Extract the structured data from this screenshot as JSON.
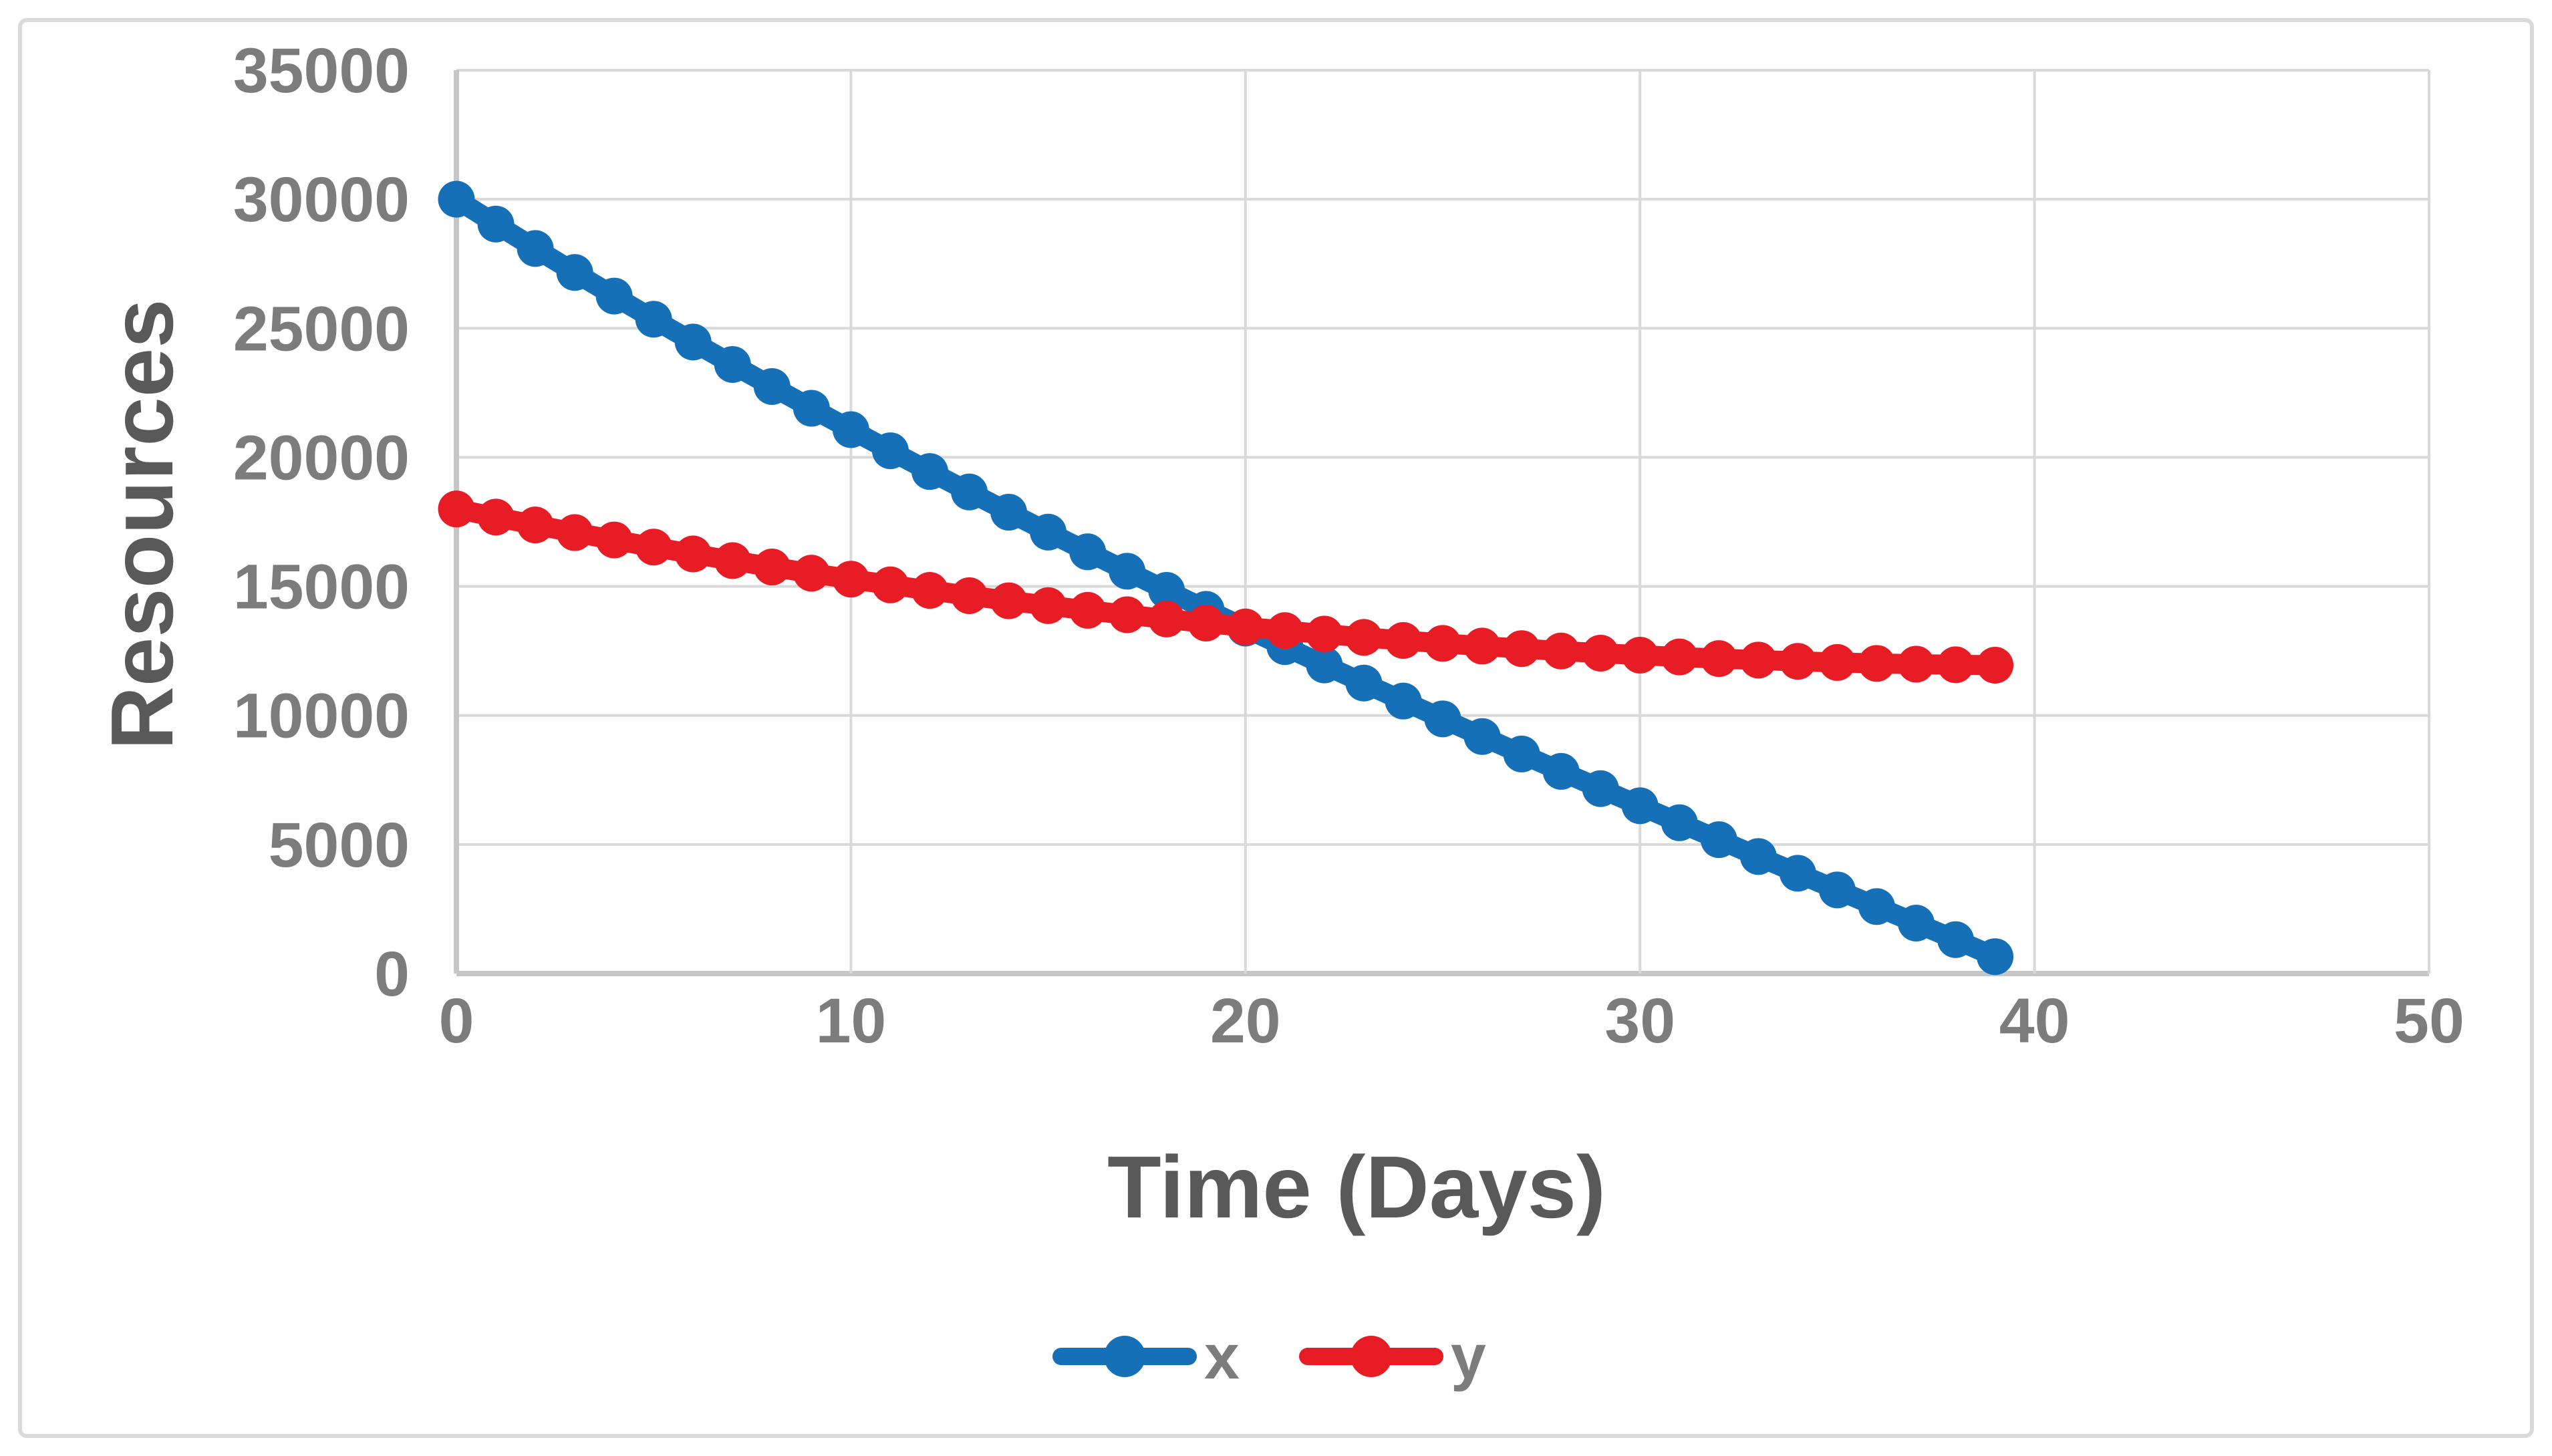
{
  "chart_data": {
    "type": "line",
    "title": "",
    "xlabel": "Time (Days)",
    "ylabel": "Resources",
    "x": [
      0,
      1,
      2,
      3,
      4,
      5,
      6,
      7,
      8,
      9,
      10,
      11,
      12,
      13,
      14,
      15,
      16,
      17,
      18,
      19,
      20,
      21,
      22,
      23,
      24,
      25,
      26,
      27,
      28,
      29,
      30,
      31,
      32,
      33,
      34,
      35,
      36,
      37,
      38,
      39
    ],
    "series": [
      {
        "name": "x",
        "color": "#1670B8",
        "values": [
          30000,
          29037,
          28091,
          27162,
          26248,
          25350,
          24467,
          23598,
          22743,
          21901,
          21072,
          20255,
          19450,
          18657,
          17874,
          17102,
          16340,
          15588,
          14845,
          14111,
          13385,
          12667,
          11957,
          11254,
          10558,
          9868,
          9184,
          8506,
          7833,
          7165,
          6502,
          5843,
          5187,
          4535,
          3886,
          3240,
          2596,
          1954,
          1313,
          655
        ]
      },
      {
        "name": "y",
        "color": "#E81C24",
        "values": [
          18000,
          17685,
          17380,
          17085,
          16799,
          16523,
          16257,
          15999,
          15751,
          15512,
          15281,
          15059,
          14845,
          14640,
          14443,
          14254,
          14074,
          13901,
          13736,
          13579,
          13429,
          13287,
          13152,
          13025,
          12905,
          12793,
          12687,
          12589,
          12498,
          12414,
          12336,
          12266,
          12202,
          12146,
          12096,
          12053,
          12016,
          11987,
          11964,
          11947
        ]
      }
    ],
    "xlim": [
      0,
      50
    ],
    "ylim": [
      0,
      35000
    ],
    "x_ticks": [
      0,
      10,
      20,
      30,
      40,
      50
    ],
    "y_ticks": [
      0,
      5000,
      10000,
      15000,
      20000,
      25000,
      30000,
      35000
    ],
    "grid": true,
    "legend_position": "bottom",
    "marker": "circle",
    "colors": {
      "gridline": "#D9D9D9",
      "axis_line": "#C4C6C8",
      "tick_text": "#7C7C7C",
      "title_text": "#595959",
      "frame_border": "#D9DADB",
      "background": "#FFFFFF"
    }
  }
}
